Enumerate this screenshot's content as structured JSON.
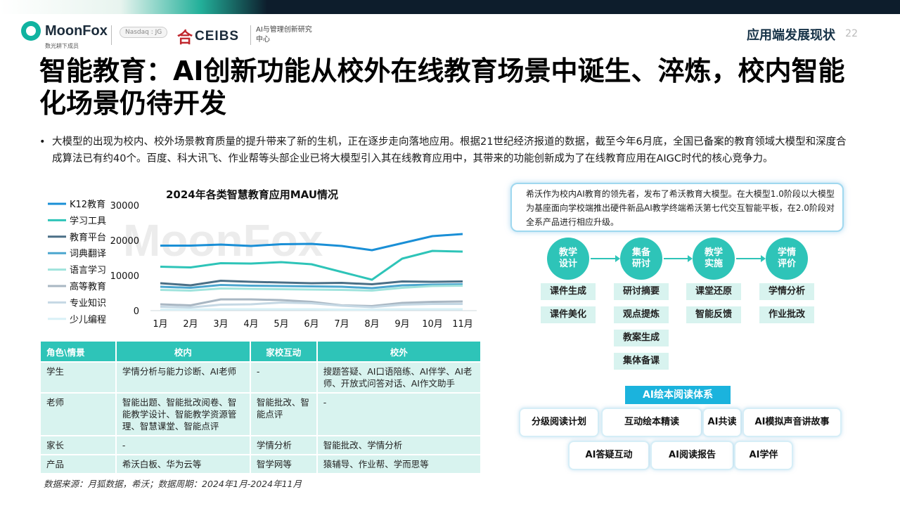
{
  "header": {
    "logo_name": "MoonFox",
    "logo_sub": "数光耕下成员",
    "nasdaq": "Nasdaq : JG",
    "ceibs_name": "CEIBS",
    "ceibs_sub": "AI与管理创新研究中心",
    "section": "应用端发展现状",
    "page": "22"
  },
  "title": "智能教育：AI创新功能从校外在线教育场景中诞生、淬炼，校内智能化场景仍待开发",
  "bullet_text": "大模型的出现为校内、校外场景教育质量的提升带来了新的生机，正在逐步走向落地应用。根据21世纪经济报道的数据，截至今年6月底，全国已备案的教育领域大模型和深度合成算法已有约40个。百度、科大讯飞、作业帮等头部企业已将大模型引入其在线教育应用中，其带来的功能创新成为了在线教育应用在AIGC时代的核心竞争力。",
  "watermark": "MoonFox",
  "chart_data": {
    "type": "line",
    "title": "2024年各类智慧教育应用MAU情况",
    "categories": [
      "1月",
      "2月",
      "3月",
      "4月",
      "5月",
      "6月",
      "7月",
      "8月",
      "9月",
      "10月",
      "11月"
    ],
    "yticks": [
      0,
      10000,
      20000,
      30000
    ],
    "ylim": [
      0,
      30000
    ],
    "legend_position": "left",
    "series": [
      {
        "name": "K12教育",
        "color": "#1a8fd6",
        "values": [
          18500,
          18500,
          18800,
          18400,
          18900,
          19000,
          18400,
          17200,
          19200,
          21200,
          21800
        ]
      },
      {
        "name": "学习工具",
        "color": "#2ec4b8",
        "values": [
          12500,
          12300,
          13500,
          13400,
          13800,
          13200,
          11000,
          8800,
          14800,
          17000,
          16800
        ]
      },
      {
        "name": "教育平台",
        "color": "#4a6f86",
        "values": [
          7800,
          7200,
          8500,
          8200,
          8000,
          7800,
          7900,
          7500,
          8300,
          8200,
          8300
        ]
      },
      {
        "name": "词典翻译",
        "color": "#4ba6cf",
        "values": [
          6800,
          6500,
          7300,
          7100,
          7000,
          6900,
          6800,
          6400,
          7200,
          7400,
          7500
        ]
      },
      {
        "name": "语言学习",
        "color": "#9fe3dc",
        "values": [
          5900,
          5700,
          6300,
          6200,
          6100,
          6000,
          5900,
          5700,
          6500,
          7000,
          7100
        ]
      },
      {
        "name": "高等教育",
        "color": "#a9b7c3",
        "values": [
          1800,
          1500,
          3200,
          3200,
          3000,
          2500,
          1500,
          1300,
          2200,
          2500,
          2600
        ]
      },
      {
        "name": "专业知识",
        "color": "#c5d8e4",
        "values": [
          1100,
          900,
          1700,
          1800,
          2300,
          2100,
          1400,
          1000,
          1700,
          1900,
          1900
        ]
      },
      {
        "name": "少儿编程",
        "color": "#d9f1f7",
        "values": [
          300,
          300,
          400,
          400,
          400,
          400,
          300,
          300,
          400,
          400,
          400
        ]
      }
    ]
  },
  "table": {
    "headers": [
      "角色\\情景",
      "校内",
      "家校互动",
      "校外"
    ],
    "rows": [
      [
        "学生",
        "学情分析与能力诊断、AI老师",
        "-",
        "搜题答疑、AI口语陪练、AI伴学、AI老师、开放式问答对话、AI作文助手"
      ],
      [
        "老师",
        "智能出题、智能批改阅卷、智能教学设计、智能教学资源管理、智慧课堂、智能点评",
        "智能批改、智能点评",
        "-"
      ],
      [
        "家长",
        "-",
        "学情分析",
        "智能批改、学情分析"
      ],
      [
        "产品",
        "希沃白板、华为云等",
        "智学网等",
        "猿辅导、作业帮、学而思等"
      ]
    ]
  },
  "source": "数据来源：月狐数据，希沃；数据周期：2024年1月-2024年11月",
  "callout": "希沃作为校内AI教育的领先者，发布了希沃教育大模型。在大模型1.0阶段以大模型为基座面向学校端推出硬件新品AI教学终端希沃第七代交互智能平板，在2.0阶段对全系产品进行相应升级。",
  "flow": [
    {
      "label": "教学\n设计",
      "tags": [
        "课件生成",
        "课件美化"
      ]
    },
    {
      "label": "集备\n研讨",
      "tags": [
        "研讨摘要",
        "观点提炼",
        "教案生成",
        "集体备课"
      ]
    },
    {
      "label": "教学\n实施",
      "tags": [
        "课堂还原",
        "智能反馈"
      ]
    },
    {
      "label": "学情\n评价",
      "tags": [
        "学情分析",
        "作业批改"
      ]
    }
  ],
  "ai_reading": {
    "title": "AI绘本阅读体系",
    "row1": [
      "分级阅读计划",
      "互动绘本精读",
      "AI共读",
      "AI模拟声音讲故事"
    ],
    "row2": [
      "AI答疑互动",
      "AI阅读报告",
      "AI学伴"
    ]
  }
}
